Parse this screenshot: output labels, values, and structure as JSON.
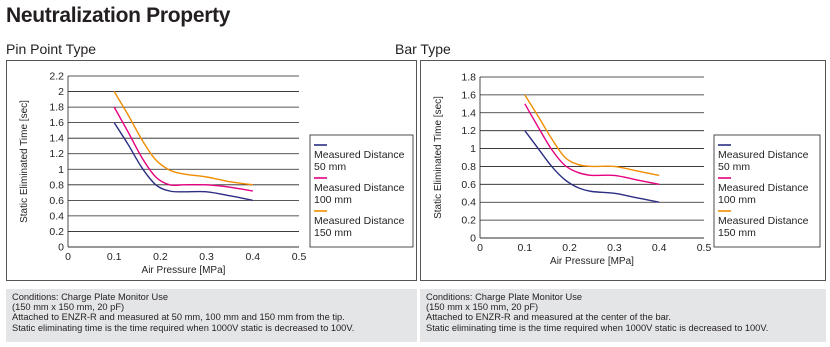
{
  "page_title": "Neutralization Property",
  "colors": {
    "series_50": "#2b2e83",
    "series_100": "#e4007f",
    "series_150": "#f18d00"
  },
  "chart_data": [
    {
      "type": "line",
      "title": "Pin Point Type",
      "xlabel": "Air Pressure [MPa]",
      "ylabel": "Static Eliminated Time [sec]",
      "xlim": [
        0,
        0.5
      ],
      "ylim": [
        0,
        2.2
      ],
      "xticks": [
        "0",
        "0.1",
        "0.2",
        "0.3",
        "0.4",
        "0.5"
      ],
      "yticks": [
        "0",
        "0.2",
        "0.4",
        "0.6",
        "0.8",
        "1",
        "1.2",
        "1.4",
        "1.6",
        "1.8",
        "2",
        "2.2"
      ],
      "xtick_values": [
        0,
        0.1,
        0.2,
        0.3,
        0.4,
        0.5
      ],
      "ytick_values": [
        0,
        0.2,
        0.4,
        0.6,
        0.8,
        1,
        1.2,
        1.4,
        1.6,
        1.8,
        2,
        2.2
      ],
      "grid": "horizontal",
      "legend_position": "right",
      "series": [
        {
          "name": "Measured Distance 50 mm",
          "legend_lines": [
            "Measured Distance",
            "50 mm"
          ],
          "color": "#2b2e83",
          "x": [
            0.1,
            0.13,
            0.16,
            0.19,
            0.22,
            0.25,
            0.3,
            0.35,
            0.4
          ],
          "y": [
            1.6,
            1.32,
            1.02,
            0.8,
            0.72,
            0.71,
            0.71,
            0.66,
            0.6
          ]
        },
        {
          "name": "Measured Distance 100 mm",
          "legend_lines": [
            "Measured Distance",
            "100 mm"
          ],
          "color": "#e4007f",
          "x": [
            0.1,
            0.13,
            0.16,
            0.19,
            0.22,
            0.25,
            0.3,
            0.35,
            0.4
          ],
          "y": [
            1.8,
            1.48,
            1.15,
            0.9,
            0.8,
            0.8,
            0.8,
            0.77,
            0.72
          ]
        },
        {
          "name": "Measured Distance 150 mm",
          "legend_lines": [
            "Measured Distance",
            "150 mm"
          ],
          "color": "#f18d00",
          "x": [
            0.1,
            0.13,
            0.16,
            0.19,
            0.22,
            0.25,
            0.3,
            0.35,
            0.4
          ],
          "y": [
            2.0,
            1.7,
            1.38,
            1.12,
            0.99,
            0.94,
            0.9,
            0.84,
            0.8
          ]
        }
      ],
      "notes": [
        "Conditions: Charge Plate Monitor Use",
        "(150 mm x 150 mm, 20 pF)",
        "Attached to ENZR-R and measured at 50 mm, 100 mm and 150 mm from the tip.",
        "Static eliminating time is the time required when 1000V static is decreased to 100V."
      ]
    },
    {
      "type": "line",
      "title": "Bar Type",
      "xlabel": "Air Pressure [MPa]",
      "ylabel": "Static Eliminated Time [sec]",
      "xlim": [
        0,
        0.5
      ],
      "ylim": [
        0,
        1.8
      ],
      "xticks": [
        "0",
        "0.1",
        "0.2",
        "0.3",
        "0.4",
        "0.5"
      ],
      "yticks": [
        "0",
        "0.2",
        "0.4",
        "0.6",
        "0.8",
        "1",
        "1.2",
        "1.4",
        "1.6",
        "1.8"
      ],
      "xtick_values": [
        0,
        0.1,
        0.2,
        0.3,
        0.4,
        0.5
      ],
      "ytick_values": [
        0,
        0.2,
        0.4,
        0.6,
        0.8,
        1,
        1.2,
        1.4,
        1.6,
        1.8
      ],
      "grid": "horizontal",
      "legend_position": "right",
      "series": [
        {
          "name": "Measured Distance 50 mm",
          "legend_lines": [
            "Measured Distance",
            "50 mm"
          ],
          "color": "#2b2e83",
          "x": [
            0.1,
            0.13,
            0.16,
            0.19,
            0.22,
            0.25,
            0.3,
            0.35,
            0.4
          ],
          "y": [
            1.2,
            1.0,
            0.8,
            0.65,
            0.56,
            0.52,
            0.5,
            0.45,
            0.4
          ]
        },
        {
          "name": "Measured Distance 100 mm",
          "legend_lines": [
            "Measured Distance",
            "100 mm"
          ],
          "color": "#e4007f",
          "x": [
            0.1,
            0.13,
            0.16,
            0.19,
            0.22,
            0.25,
            0.3,
            0.35,
            0.4
          ],
          "y": [
            1.5,
            1.24,
            0.99,
            0.81,
            0.73,
            0.7,
            0.7,
            0.65,
            0.6
          ]
        },
        {
          "name": "Measured Distance 150 mm",
          "legend_lines": [
            "Measured Distance",
            "150 mm"
          ],
          "color": "#f18d00",
          "x": [
            0.1,
            0.13,
            0.16,
            0.19,
            0.22,
            0.25,
            0.3,
            0.35,
            0.4
          ],
          "y": [
            1.6,
            1.36,
            1.11,
            0.9,
            0.82,
            0.8,
            0.8,
            0.75,
            0.7
          ]
        }
      ],
      "notes": [
        "Conditions: Charge Plate Monitor Use",
        "(150 mm x 150 mm, 20 pF)",
        "Attached to ENZR-R and measured at the center of the bar.",
        "Static eliminating time is the time required when 1000V static is decreased to 100V."
      ]
    }
  ]
}
